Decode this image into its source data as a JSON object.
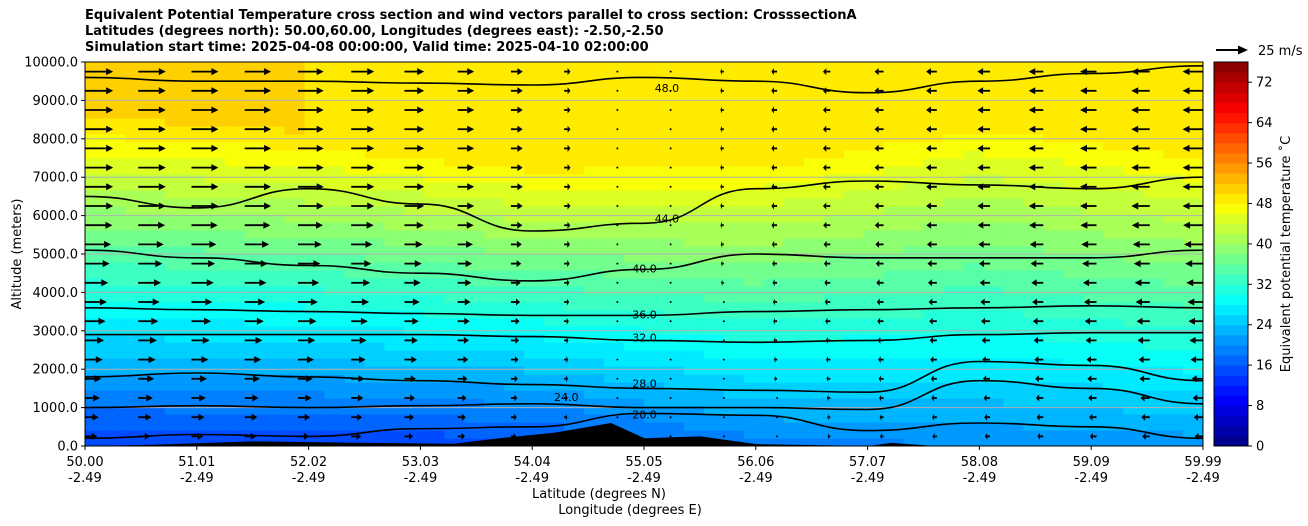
{
  "chart_data": {
    "type": "contourf",
    "title_lines": [
      "Equivalent Potential Temperature cross section and wind vectors parallel to cross section: CrosssectionA",
      "Latitudes (degrees north): 50.00,60.00, Longitudes (degrees east): -2.50,-2.50",
      "Simulation start time: 2025-04-08 00:00:00, Valid time: 2025-04-10 02:00:00"
    ],
    "xlabel_lines": [
      "Latitude (degrees N)",
      "Longitude (degrees E)"
    ],
    "ylabel": "Altitude (meters)",
    "ylim": [
      0,
      10000
    ],
    "xlim": [
      50.0,
      59.99
    ],
    "y_ticks": [
      0,
      1000,
      2000,
      3000,
      4000,
      5000,
      6000,
      7000,
      8000,
      9000,
      10000
    ],
    "y_tick_labels": [
      "0.0",
      "1000.0",
      "2000.0",
      "3000.0",
      "4000.0",
      "5000.0",
      "6000.0",
      "7000.0",
      "8000.0",
      "9000.0",
      "10000.0"
    ],
    "x_ticks": [
      {
        "lat": "50.00",
        "lon": "-2.49"
      },
      {
        "lat": "51.01",
        "lon": "-2.49"
      },
      {
        "lat": "52.02",
        "lon": "-2.49"
      },
      {
        "lat": "53.03",
        "lon": "-2.49"
      },
      {
        "lat": "54.04",
        "lon": "-2.49"
      },
      {
        "lat": "55.05",
        "lon": "-2.49"
      },
      {
        "lat": "56.06",
        "lon": "-2.49"
      },
      {
        "lat": "57.07",
        "lon": "-2.49"
      },
      {
        "lat": "58.08",
        "lon": "-2.49"
      },
      {
        "lat": "59.09",
        "lon": "-2.49"
      },
      {
        "lat": "59.99",
        "lon": "-2.49"
      }
    ],
    "horizontal_gridlines": true,
    "colorbar": {
      "label": "Equivalent potential temperature $^\\circ$C",
      "label_text": "Equivalent potential temperature ˚C",
      "min": 0,
      "max": 76,
      "level_step": 2,
      "ticks": [
        0,
        8,
        16,
        24,
        32,
        40,
        48,
        56,
        64,
        72
      ],
      "tick_labels": [
        "0",
        "8",
        "16",
        "24",
        "32",
        "40",
        "48",
        "56",
        "64",
        "72"
      ],
      "colormap": "jet"
    },
    "quiver_key": {
      "label": "25 m/s",
      "speed": 25
    },
    "contour_levels": [
      {
        "level": 48,
        "label": "48.0",
        "heights_m": [
          9600,
          9500,
          9500,
          9450,
          9400,
          9600,
          9500,
          9200,
          9500,
          9700,
          9900
        ],
        "label_pos": {
          "lat": 55.2,
          "alt": 9300
        }
      },
      {
        "level": 44,
        "label": "44.0",
        "heights_m": [
          6500,
          6200,
          6700,
          6300,
          5600,
          5800,
          6700,
          6900,
          6800,
          6700,
          7000
        ],
        "label_pos": {
          "lat": 55.2,
          "alt": 5900
        }
      },
      {
        "level": 40,
        "label": "40.0",
        "heights_m": [
          5100,
          4900,
          4700,
          4500,
          4300,
          4600,
          5000,
          4900,
          4900,
          4900,
          5100
        ],
        "label_pos": {
          "lat": 55.0,
          "alt": 4600
        }
      },
      {
        "level": 36,
        "label": "36.0",
        "heights_m": [
          3600,
          3550,
          3500,
          3450,
          3400,
          3400,
          3500,
          3550,
          3600,
          3650,
          3600
        ],
        "label_pos": {
          "lat": 55.0,
          "alt": 3400
        }
      },
      {
        "level": 32,
        "label": "32.0",
        "heights_m": [
          2900,
          2900,
          2900,
          2900,
          2850,
          2750,
          2700,
          2750,
          2900,
          2950,
          2950
        ],
        "label_pos": {
          "lat": 55.0,
          "alt": 2800
        }
      },
      {
        "level": 28,
        "label": "28.0",
        "heights_m": [
          1800,
          1900,
          1800,
          1700,
          1600,
          1500,
          1450,
          1400,
          2200,
          2100,
          1700
        ],
        "label_pos": {
          "lat": 55.0,
          "alt": 1600
        }
      },
      {
        "level": 24,
        "label": "24.0",
        "heights_m": [
          1000,
          1050,
          1000,
          1050,
          1100,
          1000,
          1000,
          950,
          1700,
          1500,
          1100
        ],
        "label_pos": {
          "lat": 54.3,
          "alt": 1250
        }
      },
      {
        "level": 20,
        "label": "20.0",
        "heights_m": [
          200,
          300,
          250,
          450,
          500,
          850,
          800,
          400,
          600,
          500,
          200
        ],
        "label_pos": {
          "lat": 55.0,
          "alt": 800
        }
      }
    ],
    "field_by_latitude": [
      {
        "lat": 50.0,
        "surface_C": 14,
        "lapse_C_per_km": 4.2,
        "top_C": 50
      },
      {
        "lat": 52.0,
        "surface_C": 14,
        "lapse_C_per_km": 4.4,
        "top_C": 50
      },
      {
        "lat": 54.0,
        "surface_C": 15,
        "lapse_C_per_km": 4.6,
        "top_C": 49
      },
      {
        "lat": 56.0,
        "surface_C": 19,
        "lapse_C_per_km": 4.0,
        "top_C": 49
      },
      {
        "lat": 58.0,
        "surface_C": 20,
        "lapse_C_per_km": 3.4,
        "top_C": 49
      },
      {
        "lat": 59.99,
        "surface_C": 21,
        "lapse_C_per_km": 3.6,
        "top_C": 50
      }
    ],
    "wind_profile": [
      {
        "lat": 50.0,
        "u_upper_ms": 22,
        "u_lower_ms": 9
      },
      {
        "lat": 52.0,
        "u_upper_ms": 20,
        "u_lower_ms": 8
      },
      {
        "lat": 53.5,
        "u_upper_ms": 12,
        "u_lower_ms": 5
      },
      {
        "lat": 54.6,
        "u_upper_ms": 2,
        "u_lower_ms": 1
      },
      {
        "lat": 56.0,
        "u_upper_ms": -4,
        "u_lower_ms": -1
      },
      {
        "lat": 57.5,
        "u_upper_ms": -8,
        "u_lower_ms": -3
      },
      {
        "lat": 59.99,
        "u_upper_ms": -16,
        "u_lower_ms": -6
      }
    ],
    "terrain_m": [
      {
        "lat": 50.0,
        "alt": 0
      },
      {
        "lat": 50.6,
        "alt": 30
      },
      {
        "lat": 51.5,
        "alt": 120
      },
      {
        "lat": 52.5,
        "alt": 80
      },
      {
        "lat": 53.3,
        "alt": 60
      },
      {
        "lat": 53.7,
        "alt": 200
      },
      {
        "lat": 54.2,
        "alt": 350
      },
      {
        "lat": 54.7,
        "alt": 600
      },
      {
        "lat": 55.0,
        "alt": 200
      },
      {
        "lat": 55.5,
        "alt": 250
      },
      {
        "lat": 56.0,
        "alt": 50
      },
      {
        "lat": 57.0,
        "alt": 0
      },
      {
        "lat": 57.2,
        "alt": 80
      },
      {
        "lat": 57.6,
        "alt": 0
      },
      {
        "lat": 59.99,
        "alt": 0
      }
    ]
  }
}
